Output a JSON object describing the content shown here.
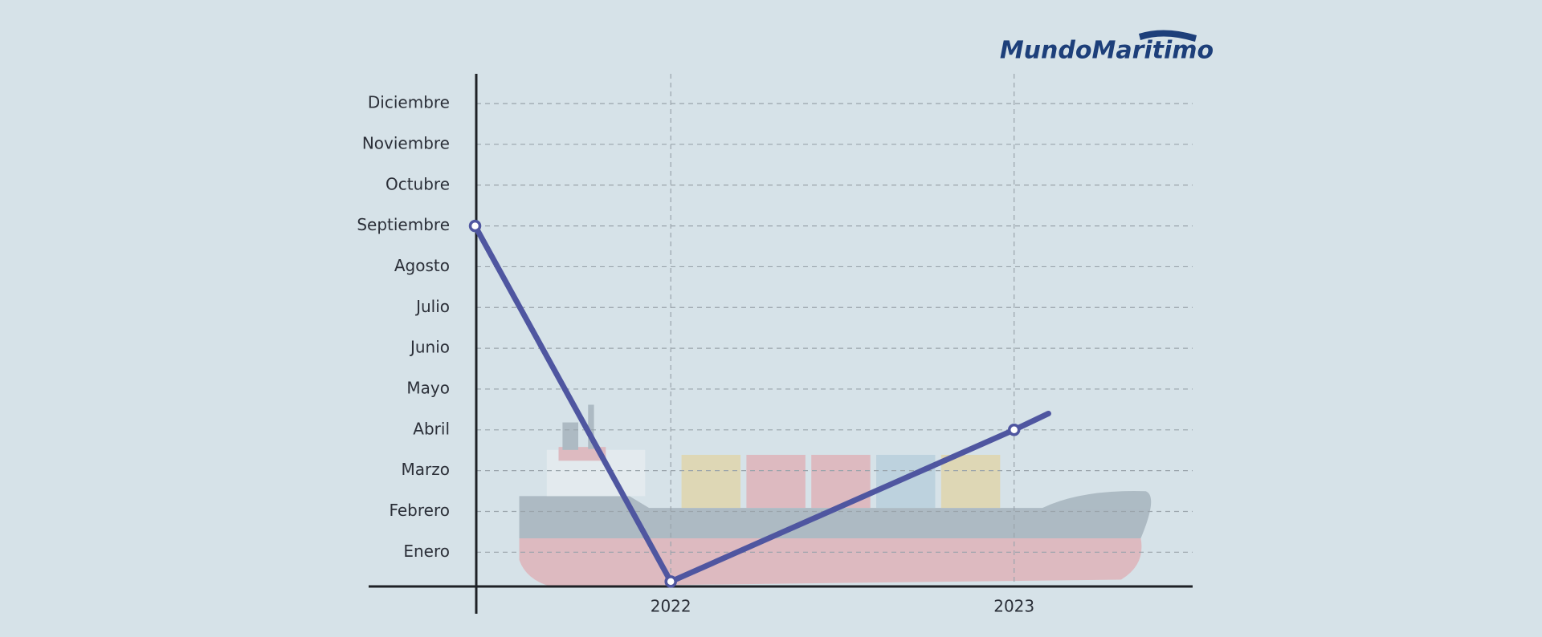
{
  "logo": "MundoMaritimo",
  "chart_data": {
    "type": "line",
    "x": [
      2021.43,
      2022,
      2023,
      2023.1
    ],
    "values": [
      9,
      0.28,
      4,
      4.4
    ],
    "markers": [
      true,
      true,
      true,
      false
    ],
    "color": "#4f56a0",
    "xlim": [
      2021.12,
      2023.52
    ],
    "xticks": [
      2022,
      2023
    ],
    "ylim": [
      0.16,
      12.73
    ],
    "yticks": [
      {
        "value": 1,
        "label": "Enero"
      },
      {
        "value": 2,
        "label": "Febrero"
      },
      {
        "value": 3,
        "label": "Marzo"
      },
      {
        "value": 4,
        "label": "Abril"
      },
      {
        "value": 5,
        "label": "Mayo"
      },
      {
        "value": 6,
        "label": "Junio"
      },
      {
        "value": 7,
        "label": "Julio"
      },
      {
        "value": 8,
        "label": "Agosto"
      },
      {
        "value": 9,
        "label": "Septiembre"
      },
      {
        "value": 10,
        "label": "Octubre"
      },
      {
        "value": 11,
        "label": "Noviembre"
      },
      {
        "value": 12,
        "label": "Diciembre"
      }
    ],
    "grid": true
  }
}
